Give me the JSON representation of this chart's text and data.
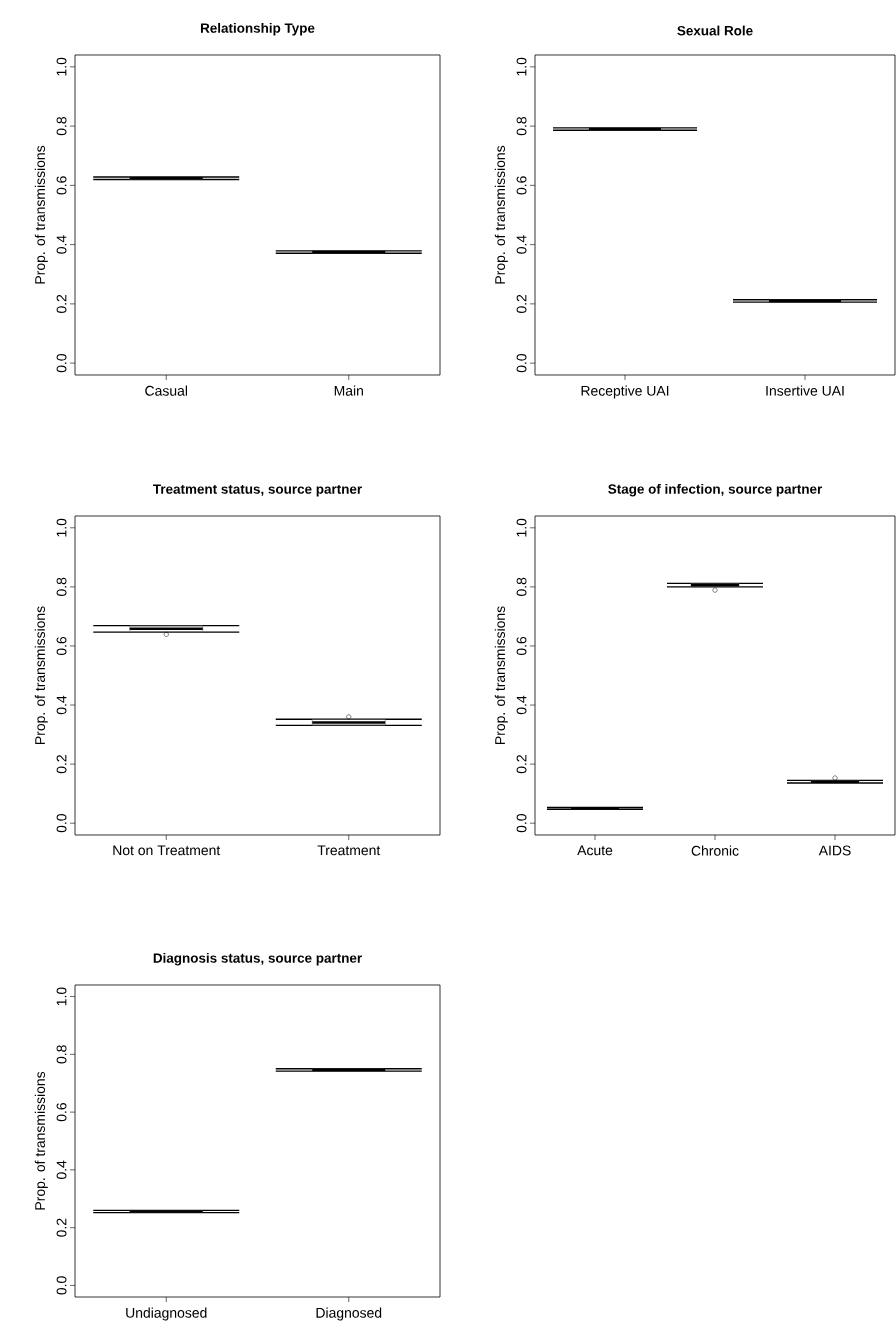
{
  "chart_data": [
    {
      "type": "box",
      "title": "Relationship Type",
      "ylabel": "Prop. of transmissions",
      "categories": [
        "Casual",
        "Main"
      ],
      "boxes": [
        {
          "low": 0.62,
          "q1": 0.621,
          "median": 0.624,
          "q3": 0.627,
          "high": 0.628
        },
        {
          "low": 0.371,
          "q1": 0.372,
          "median": 0.375,
          "q3": 0.378,
          "high": 0.379
        }
      ],
      "ylim": [
        -0.04,
        1.04
      ],
      "yticks": [
        {
          "value": 0,
          "label": "0.0"
        },
        {
          "value": 0.2,
          "label": "0.2"
        },
        {
          "value": 0.4,
          "label": "0.4"
        },
        {
          "value": 0.6,
          "label": "0.6"
        },
        {
          "value": 0.8,
          "label": "0.8"
        },
        {
          "value": 1,
          "label": "1.0"
        }
      ]
    },
    {
      "type": "box",
      "title": "Sexual Role",
      "ylabel": "Prop. of transmissions",
      "categories": [
        "Receptive UAI",
        "Insertive UAI"
      ],
      "boxes": [
        {
          "low": 0.786,
          "q1": 0.787,
          "median": 0.79,
          "q3": 0.793,
          "high": 0.794
        },
        {
          "low": 0.206,
          "q1": 0.207,
          "median": 0.21,
          "q3": 0.213,
          "high": 0.214
        }
      ],
      "ylim": [
        -0.04,
        1.04
      ],
      "yticks": [
        {
          "value": 0,
          "label": "0.0"
        },
        {
          "value": 0.2,
          "label": "0.2"
        },
        {
          "value": 0.4,
          "label": "0.4"
        },
        {
          "value": 0.6,
          "label": "0.6"
        },
        {
          "value": 0.8,
          "label": "0.8"
        },
        {
          "value": 1,
          "label": "1.0"
        }
      ]
    },
    {
      "type": "box",
      "title": "Treatment status, source partner",
      "ylabel": "Prop. of transmissions",
      "categories": [
        "Not on Treatment",
        "Treatment"
      ],
      "boxes": [
        {
          "low": 0.647,
          "q1": 0.648,
          "median": 0.658,
          "q3": 0.668,
          "high": 0.669,
          "outliers": [
            0.639
          ]
        },
        {
          "low": 0.331,
          "q1": 0.332,
          "median": 0.341,
          "q3": 0.351,
          "high": 0.352,
          "outliers": [
            0.36
          ]
        }
      ],
      "ylim": [
        -0.04,
        1.04
      ],
      "yticks": [
        {
          "value": 0,
          "label": "0.0"
        },
        {
          "value": 0.2,
          "label": "0.2"
        },
        {
          "value": 0.4,
          "label": "0.4"
        },
        {
          "value": 0.6,
          "label": "0.6"
        },
        {
          "value": 0.8,
          "label": "0.8"
        },
        {
          "value": 1,
          "label": "1.0"
        }
      ]
    },
    {
      "type": "box",
      "title": "Stage of infection, source partner",
      "ylabel": "Prop. of transmissions",
      "categories": [
        "Acute",
        "Chronic",
        "AIDS"
      ],
      "boxes": [
        {
          "low": 0.047,
          "q1": 0.048,
          "median": 0.05,
          "q3": 0.052,
          "high": 0.053
        },
        {
          "low": 0.8,
          "q1": 0.801,
          "median": 0.806,
          "q3": 0.811,
          "high": 0.812,
          "outliers": [
            0.789
          ]
        },
        {
          "low": 0.136,
          "q1": 0.137,
          "median": 0.14,
          "q3": 0.144,
          "high": 0.145,
          "outliers": [
            0.153
          ]
        }
      ],
      "ylim": [
        -0.04,
        1.04
      ],
      "yticks": [
        {
          "value": 0,
          "label": "0.0"
        },
        {
          "value": 0.2,
          "label": "0.2"
        },
        {
          "value": 0.4,
          "label": "0.4"
        },
        {
          "value": 0.6,
          "label": "0.6"
        },
        {
          "value": 0.8,
          "label": "0.8"
        },
        {
          "value": 1,
          "label": "1.0"
        }
      ]
    },
    {
      "type": "box",
      "title": "Diagnosis status, source partner",
      "ylabel": "Prop. of transmissions",
      "categories": [
        "Undiagnosed",
        "Diagnosed"
      ],
      "boxes": [
        {
          "low": 0.252,
          "q1": 0.253,
          "median": 0.256,
          "q3": 0.259,
          "high": 0.26
        },
        {
          "low": 0.742,
          "q1": 0.743,
          "median": 0.746,
          "q3": 0.749,
          "high": 0.75
        }
      ],
      "ylim": [
        -0.04,
        1.04
      ],
      "yticks": [
        {
          "value": 0,
          "label": "0.0"
        },
        {
          "value": 0.2,
          "label": "0.2"
        },
        {
          "value": 0.4,
          "label": "0.4"
        },
        {
          "value": 0.6,
          "label": "0.6"
        },
        {
          "value": 0.8,
          "label": "0.8"
        },
        {
          "value": 1,
          "label": "1.0"
        }
      ]
    }
  ]
}
